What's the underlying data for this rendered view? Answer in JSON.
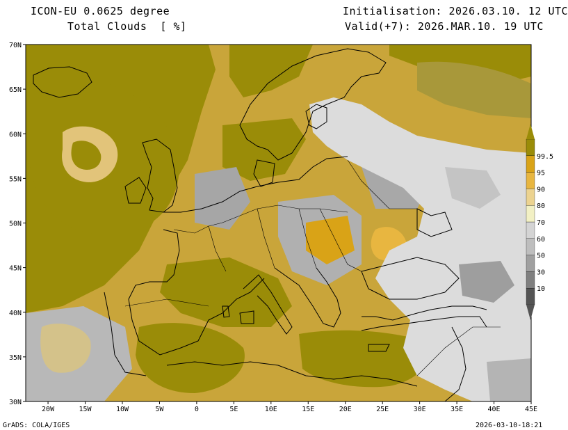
{
  "header": {
    "model": "ICON-EU 0.0625 degree",
    "variable": "Total Clouds  [ %]",
    "init": "Initialisation: 2026.03.10. 12 UTC",
    "valid": "Valid(+7): 2026.MAR.10. 19 UTC"
  },
  "map": {
    "lon_range": [
      -23,
      45
    ],
    "lat_range": [
      30,
      70
    ],
    "lat_labels": [
      "70N",
      "65N",
      "60N",
      "55N",
      "50N",
      "45N",
      "40N",
      "35N",
      "30N"
    ],
    "lon_labels": [
      "20W",
      "15W",
      "10W",
      "5W",
      "0",
      "5E",
      "10E",
      "15E",
      "20E",
      "25E",
      "30E",
      "35E",
      "40E",
      "45E"
    ]
  },
  "legend": {
    "levels": [
      "10",
      "30",
      "50",
      "60",
      "70",
      "80",
      "90",
      "95",
      "99.5"
    ],
    "colors": [
      "#545454",
      "#808080",
      "#a0a0a0",
      "#bebebe",
      "#d4d4d4",
      "#f2f0c4",
      "#ecd390",
      "#e8b640",
      "#d9a317",
      "#9a8c08"
    ]
  },
  "colors": {
    "overcast": "#9a8c08",
    "clear": "#dcdcdc",
    "coast": "#000000"
  },
  "footer": {
    "left": "GrADS: COLA/IGES",
    "right": "2026-03-10-18:21"
  }
}
